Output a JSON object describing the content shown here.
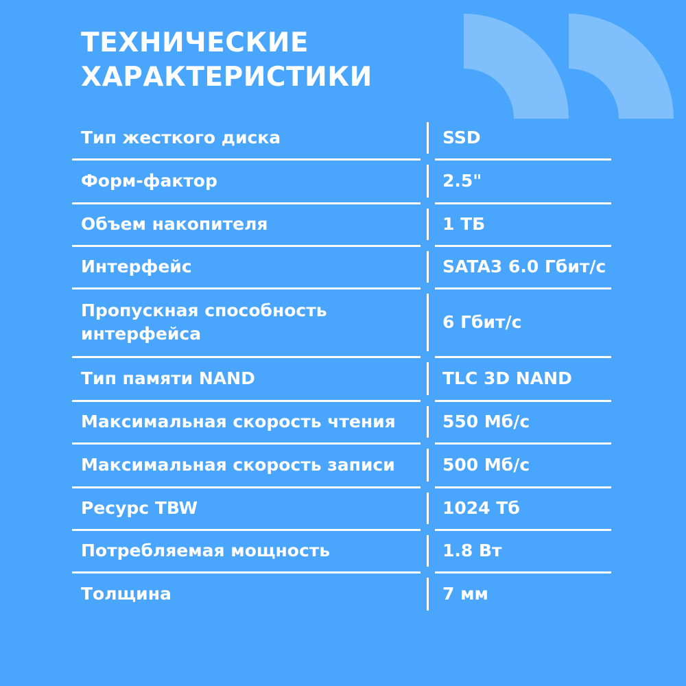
{
  "title_lines": [
    "ТЕХНИЧЕСКИЕ",
    "ХАРАКТЕРИСТИКИ"
  ],
  "colors": {
    "background": "#4aa5fc",
    "quote_shape": "#7fbffc",
    "text": "#ffffff"
  },
  "decoration": "closing-quote-marks",
  "specs": [
    {
      "label": "Тип жесткого диска",
      "value": "SSD"
    },
    {
      "label": "Форм-фактор",
      "value": "2.5\""
    },
    {
      "label": "Объем накопителя",
      "value": "1 ТБ"
    },
    {
      "label": "Интерфейс",
      "value": "SATA3 6.0 Гбит/с"
    },
    {
      "label": "Пропускная способность интерфейса",
      "value": "6 Гбит/с"
    },
    {
      "label": "Тип памяти NAND",
      "value": "TLC 3D NAND"
    },
    {
      "label": "Максимальная скорость чтения",
      "value": "550 Мб/с"
    },
    {
      "label": "Максимальная скорость записи",
      "value": "500 Мб/с"
    },
    {
      "label": "Ресурс TBW",
      "value": "1024 Тб"
    },
    {
      "label": "Потребляемая мощность",
      "value": "1.8 Вт"
    },
    {
      "label": "Толщина",
      "value": "7 мм"
    }
  ]
}
